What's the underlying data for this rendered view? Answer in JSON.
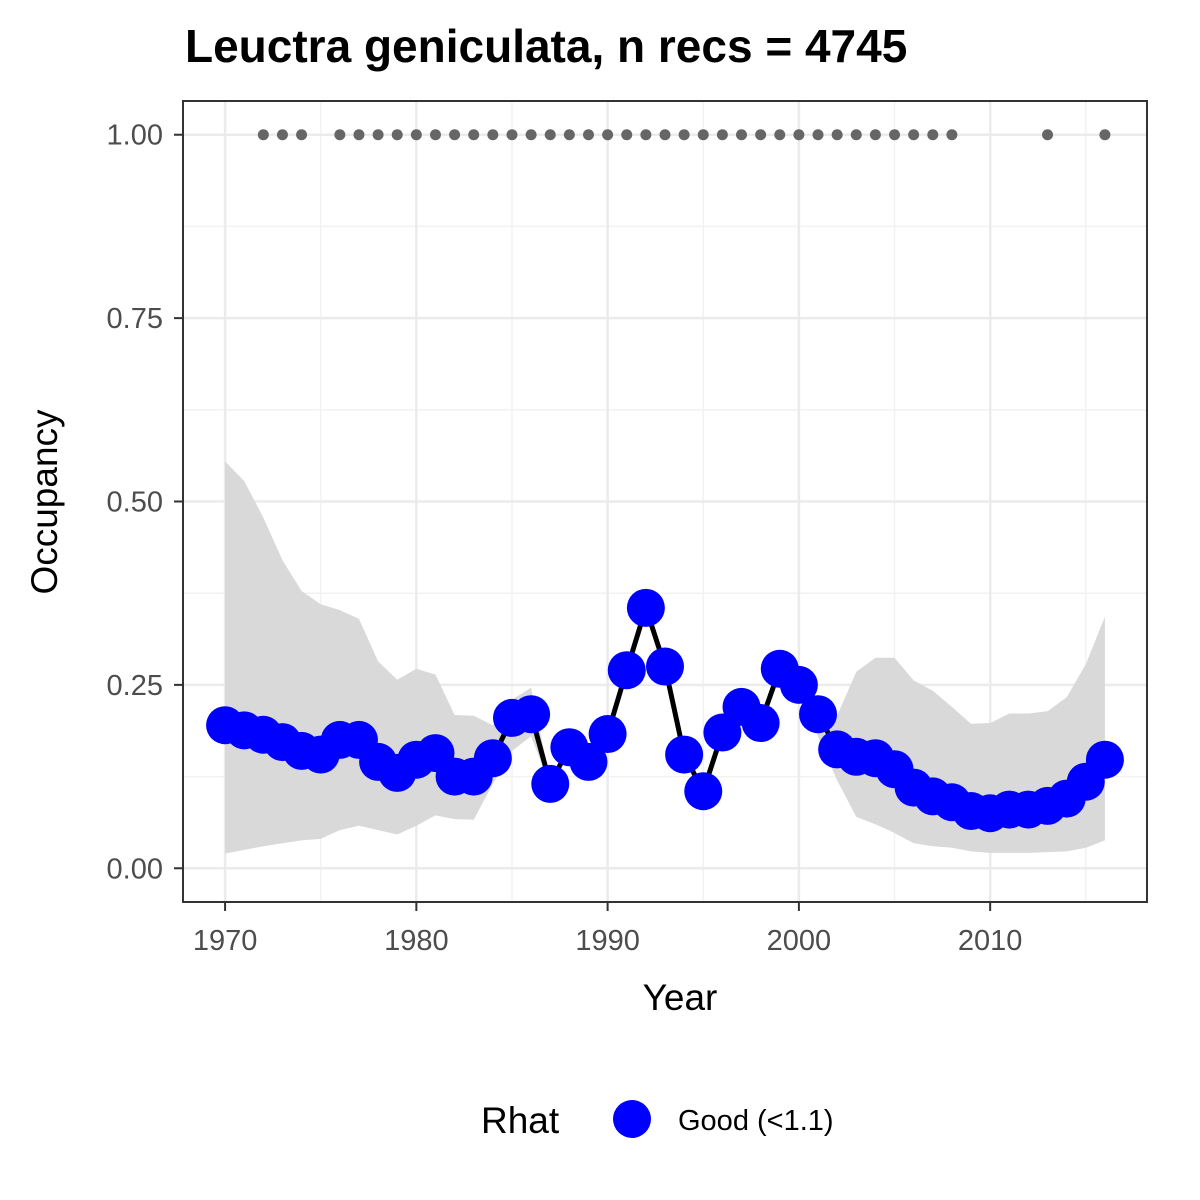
{
  "chart_data": {
    "type": "line",
    "title": "Leuctra geniculata, n recs = 4745",
    "xlabel": "Year",
    "ylabel": "Occupancy",
    "xlim": [
      1967.8,
      1970.0
    ],
    "xlim_full": [
      1967.8,
      2018.2
    ],
    "ylim": [
      -0.046,
      1.046
    ],
    "x_ticks": [
      1970,
      1980,
      1990,
      2000,
      2010
    ],
    "x_tick_labels": [
      "1970",
      "1980",
      "1990",
      "2000",
      "2010"
    ],
    "y_ticks": [
      0.0,
      0.25,
      0.5,
      0.75,
      1.0
    ],
    "y_tick_labels": [
      "0.00",
      "0.25",
      "0.50",
      "0.75",
      "1.00"
    ],
    "grid": true,
    "legend": {
      "title": "Rhat",
      "placement": "bottom",
      "entries": [
        {
          "label": "Good (<1.1)",
          "color": "#0000ff"
        }
      ]
    },
    "series": [
      {
        "kind": "occupancy",
        "x": [
          1970,
          1971,
          1972,
          1973,
          1974,
          1975,
          1976,
          1977,
          1978,
          1979,
          1980,
          1981,
          1982,
          1983,
          1984,
          1985,
          1986,
          1987,
          1988,
          1989,
          1990,
          1991,
          1992,
          1993,
          1994,
          1995,
          1996,
          1997,
          1998,
          1999,
          2000,
          2001,
          2002,
          2003,
          2004,
          2005,
          2006,
          2007,
          2008,
          2009,
          2010,
          2011,
          2012,
          2013,
          2014,
          2015,
          2016
        ],
        "y": [
          0.195,
          0.188,
          0.182,
          0.172,
          0.16,
          0.155,
          0.175,
          0.175,
          0.145,
          0.13,
          0.148,
          0.157,
          0.125,
          0.125,
          0.15,
          0.205,
          0.21,
          0.115,
          0.165,
          0.145,
          0.183,
          0.27,
          0.355,
          0.275,
          0.155,
          0.105,
          0.185,
          0.22,
          0.198,
          0.272,
          0.25,
          0.21,
          0.162,
          0.152,
          0.15,
          0.135,
          0.11,
          0.098,
          0.09,
          0.078,
          0.075,
          0.08,
          0.08,
          0.085,
          0.095,
          0.118,
          0.148
        ],
        "lower": [
          0.02,
          0.025,
          0.03,
          0.034,
          0.038,
          0.04,
          0.052,
          0.058,
          0.052,
          0.046,
          0.058,
          0.072,
          0.067,
          0.066,
          0.115,
          0.16,
          0.18,
          0.112,
          0.16,
          0.14,
          0.178,
          0.262,
          0.345,
          0.268,
          0.15,
          0.1,
          0.178,
          0.21,
          0.19,
          0.262,
          0.24,
          0.18,
          0.12,
          0.07,
          0.06,
          0.048,
          0.034,
          0.03,
          0.028,
          0.023,
          0.021,
          0.021,
          0.021,
          0.022,
          0.023,
          0.028,
          0.038
        ],
        "upper": [
          0.555,
          0.528,
          0.478,
          0.42,
          0.378,
          0.36,
          0.352,
          0.34,
          0.282,
          0.257,
          0.272,
          0.264,
          0.209,
          0.208,
          0.195,
          0.23,
          0.246,
          0.12,
          0.17,
          0.15,
          0.188,
          0.278,
          0.365,
          0.282,
          0.16,
          0.112,
          0.192,
          0.228,
          0.208,
          0.28,
          0.258,
          0.222,
          0.208,
          0.268,
          0.287,
          0.287,
          0.256,
          0.242,
          0.22,
          0.197,
          0.198,
          0.211,
          0.211,
          0.214,
          0.233,
          0.278,
          0.343
        ],
        "color": "#0000ff",
        "line_color": "#000000",
        "band_color": "#d9d9d9"
      },
      {
        "kind": "record-years",
        "x": [
          1972,
          1973,
          1974,
          1976,
          1977,
          1978,
          1979,
          1980,
          1981,
          1982,
          1983,
          1984,
          1985,
          1986,
          1987,
          1988,
          1989,
          1990,
          1991,
          1992,
          1993,
          1994,
          1995,
          1996,
          1997,
          1998,
          1999,
          2000,
          2001,
          2002,
          2003,
          2004,
          2005,
          2006,
          2007,
          2008,
          2013,
          2016
        ],
        "y": 1.0,
        "color": "#666666"
      }
    ]
  }
}
